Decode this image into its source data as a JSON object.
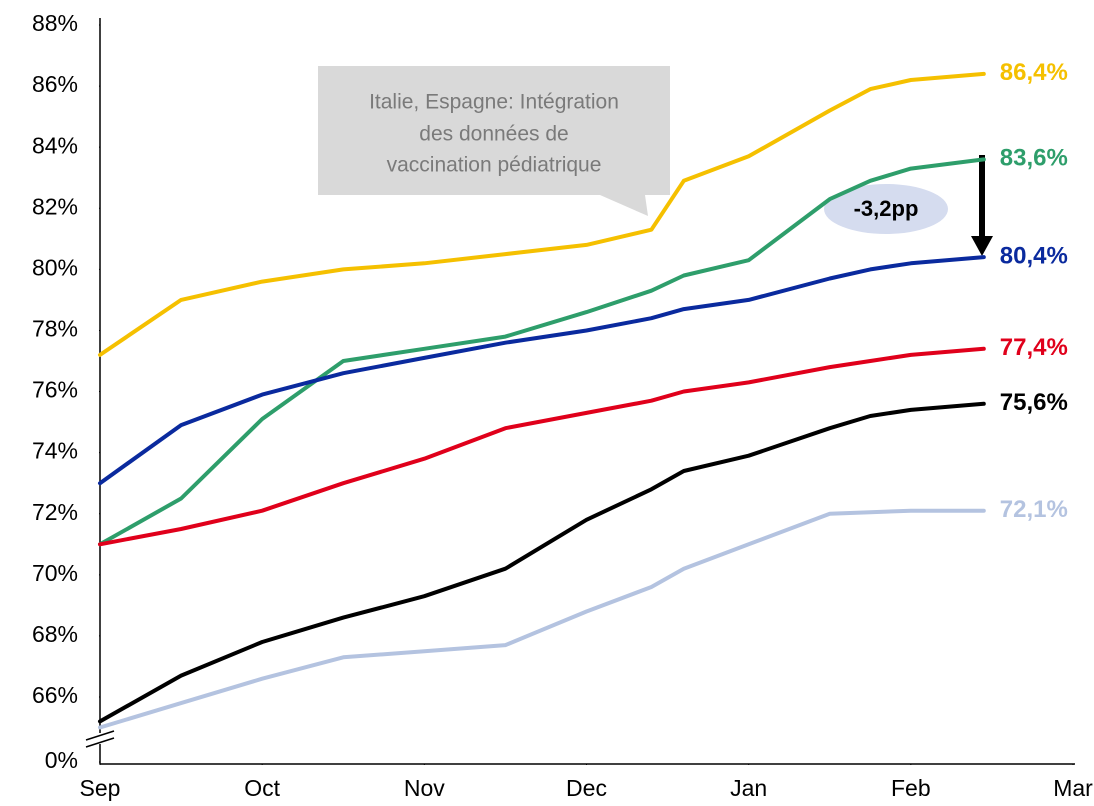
{
  "chart_data": {
    "type": "line",
    "x": [
      0,
      0.5,
      1,
      1.5,
      2,
      2.5,
      3,
      3.4,
      3.6,
      4,
      4.5,
      4.75,
      5,
      5.45
    ],
    "xlim": [
      0,
      6
    ],
    "xticks": [
      {
        "value": 0,
        "label": "Sep"
      },
      {
        "value": 1,
        "label": "Oct"
      },
      {
        "value": 2,
        "label": "Nov"
      },
      {
        "value": 3,
        "label": "Dec"
      },
      {
        "value": 4,
        "label": "Jan"
      },
      {
        "value": 5,
        "label": "Feb"
      },
      {
        "value": 6,
        "label": "Mar"
      }
    ],
    "ylim": [
      0,
      88
    ],
    "yticks": [
      {
        "value": 0,
        "label": "0%"
      },
      {
        "value": 66,
        "label": "66%"
      },
      {
        "value": 68,
        "label": "68%"
      },
      {
        "value": 70,
        "label": "70%"
      },
      {
        "value": 72,
        "label": "72%"
      },
      {
        "value": 74,
        "label": "74%"
      },
      {
        "value": 76,
        "label": "76%"
      },
      {
        "value": 78,
        "label": "78%"
      },
      {
        "value": 80,
        "label": "80%"
      },
      {
        "value": 82,
        "label": "82%"
      },
      {
        "value": 84,
        "label": "84%"
      },
      {
        "value": 86,
        "label": "86%"
      },
      {
        "value": 88,
        "label": "88%"
      }
    ],
    "axis_break": true,
    "grid": false,
    "series": [
      {
        "color": "#f5c000",
        "values": [
          77.2,
          79.0,
          79.6,
          80.0,
          80.2,
          80.5,
          80.8,
          81.3,
          82.9,
          83.7,
          85.2,
          85.9,
          86.2,
          86.4
        ],
        "end_label": "86,4%"
      },
      {
        "color": "#2e9e6b",
        "values": [
          71.0,
          72.5,
          75.1,
          77.0,
          77.4,
          77.8,
          78.6,
          79.3,
          79.8,
          80.3,
          82.3,
          82.9,
          83.3,
          83.6
        ],
        "end_label": "83,6%"
      },
      {
        "color": "#0a2a9e",
        "values": [
          73.0,
          74.9,
          75.9,
          76.6,
          77.1,
          77.6,
          78.0,
          78.4,
          78.7,
          79.0,
          79.7,
          80.0,
          80.2,
          80.4
        ],
        "end_label": "80,4%"
      },
      {
        "color": "#e0001b",
        "values": [
          71.0,
          71.5,
          72.1,
          73.0,
          73.8,
          74.8,
          75.3,
          75.7,
          76.0,
          76.3,
          76.8,
          77.0,
          77.2,
          77.4
        ],
        "end_label": "77,4%"
      },
      {
        "color": "#000000",
        "values": [
          65.2,
          66.7,
          67.8,
          68.6,
          69.3,
          70.2,
          71.8,
          72.8,
          73.4,
          73.9,
          74.8,
          75.2,
          75.4,
          75.6
        ],
        "end_label": "75,6%"
      },
      {
        "color": "#b4c3e0",
        "values": [
          65.0,
          65.8,
          66.6,
          67.3,
          67.5,
          67.7,
          68.8,
          69.6,
          70.2,
          71.0,
          72.0,
          72.05,
          72.1,
          72.1
        ],
        "end_label": "72,1%"
      }
    ],
    "annotations": [
      {
        "lines": [
          "Italie, Espagne: Intégration",
          "des données de",
          "vaccination pédiatrique"
        ]
      },
      {
        "text": "-3,2pp"
      }
    ]
  }
}
